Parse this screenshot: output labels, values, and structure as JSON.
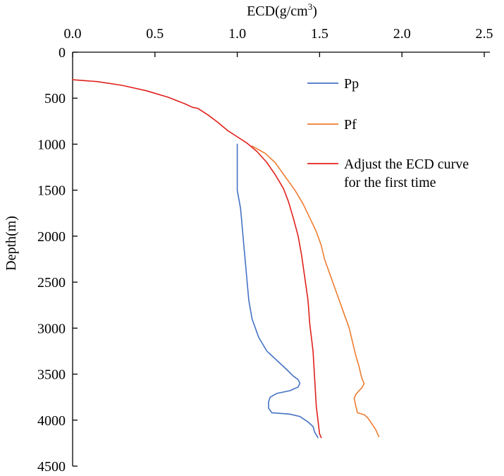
{
  "chart_data": {
    "type": "line",
    "title": "",
    "xlabel": "ECD(g/cm",
    "xlabel_superscript": "3",
    "xlabel_suffix": ")",
    "ylabel": "Depth(m)",
    "x_axis_position": "top",
    "y_axis_inverted": true,
    "xlim": [
      0,
      2.5
    ],
    "ylim": [
      0,
      4500
    ],
    "x_ticks": [
      0,
      0.5,
      1,
      1.5,
      2,
      2.5
    ],
    "x_tick_labels": [
      "0.0",
      "0.5",
      "1.0",
      "1.5",
      "2.0",
      "2.5"
    ],
    "y_ticks": [
      0,
      500,
      1000,
      1500,
      2000,
      2500,
      3000,
      3500,
      4000,
      4500
    ],
    "y_tick_labels": [
      "0",
      "500",
      "1000",
      "1500",
      "2000",
      "2500",
      "3000",
      "3500",
      "4000",
      "4500"
    ],
    "grid": false,
    "legend_position": "top-right",
    "series": [
      {
        "name": "Pp",
        "color": "#4472C4",
        "points": [
          [
            1.0,
            1000
          ],
          [
            1.0,
            1100
          ],
          [
            1.0,
            1300
          ],
          [
            1.0,
            1500
          ],
          [
            1.02,
            1700
          ],
          [
            1.03,
            1900
          ],
          [
            1.04,
            2100
          ],
          [
            1.05,
            2300
          ],
          [
            1.06,
            2500
          ],
          [
            1.07,
            2700
          ],
          [
            1.09,
            2900
          ],
          [
            1.13,
            3100
          ],
          [
            1.18,
            3250
          ],
          [
            1.24,
            3350
          ],
          [
            1.3,
            3450
          ],
          [
            1.34,
            3520
          ],
          [
            1.37,
            3560
          ],
          [
            1.38,
            3600
          ],
          [
            1.37,
            3640
          ],
          [
            1.32,
            3680
          ],
          [
            1.24,
            3710
          ],
          [
            1.2,
            3750
          ],
          [
            1.19,
            3800
          ],
          [
            1.19,
            3870
          ],
          [
            1.21,
            3920
          ],
          [
            1.32,
            3935
          ],
          [
            1.38,
            3960
          ],
          [
            1.43,
            4020
          ],
          [
            1.46,
            4070
          ],
          [
            1.47,
            4130
          ],
          [
            1.49,
            4190
          ]
        ]
      },
      {
        "name": "Pf",
        "color": "#ED7D31",
        "points": [
          [
            1.09,
            1020
          ],
          [
            1.12,
            1050
          ],
          [
            1.17,
            1100
          ],
          [
            1.23,
            1200
          ],
          [
            1.29,
            1350
          ],
          [
            1.35,
            1500
          ],
          [
            1.4,
            1650
          ],
          [
            1.44,
            1800
          ],
          [
            1.48,
            1950
          ],
          [
            1.51,
            2100
          ],
          [
            1.53,
            2250
          ],
          [
            1.56,
            2400
          ],
          [
            1.59,
            2550
          ],
          [
            1.62,
            2700
          ],
          [
            1.65,
            2850
          ],
          [
            1.68,
            3000
          ],
          [
            1.7,
            3150
          ],
          [
            1.72,
            3300
          ],
          [
            1.74,
            3420
          ],
          [
            1.75,
            3500
          ],
          [
            1.76,
            3560
          ],
          [
            1.77,
            3600
          ],
          [
            1.76,
            3640
          ],
          [
            1.74,
            3680
          ],
          [
            1.72,
            3720
          ],
          [
            1.71,
            3760
          ],
          [
            1.72,
            3850
          ],
          [
            1.73,
            3920
          ],
          [
            1.77,
            3940
          ],
          [
            1.79,
            3970
          ],
          [
            1.81,
            4020
          ],
          [
            1.84,
            4100
          ],
          [
            1.86,
            4180
          ]
        ]
      },
      {
        "name": "Adjust the ECD curve for the first time",
        "legend_lines": [
          "Adjust the ECD curve",
          "for the first time"
        ],
        "color": "#E0201B",
        "points": [
          [
            0.0,
            300
          ],
          [
            0.15,
            320
          ],
          [
            0.3,
            360
          ],
          [
            0.45,
            420
          ],
          [
            0.58,
            490
          ],
          [
            0.68,
            560
          ],
          [
            0.73,
            600
          ],
          [
            0.76,
            610
          ],
          [
            0.82,
            680
          ],
          [
            0.88,
            760
          ],
          [
            0.94,
            850
          ],
          [
            1.0,
            920
          ],
          [
            1.06,
            990
          ],
          [
            1.12,
            1080
          ],
          [
            1.18,
            1200
          ],
          [
            1.23,
            1330
          ],
          [
            1.28,
            1480
          ],
          [
            1.31,
            1620
          ],
          [
            1.34,
            1800
          ],
          [
            1.37,
            2000
          ],
          [
            1.39,
            2200
          ],
          [
            1.41,
            2450
          ],
          [
            1.43,
            2700
          ],
          [
            1.44,
            2950
          ],
          [
            1.46,
            3250
          ],
          [
            1.47,
            3550
          ],
          [
            1.48,
            3850
          ],
          [
            1.5,
            4150
          ],
          [
            1.51,
            4190
          ]
        ]
      }
    ]
  }
}
